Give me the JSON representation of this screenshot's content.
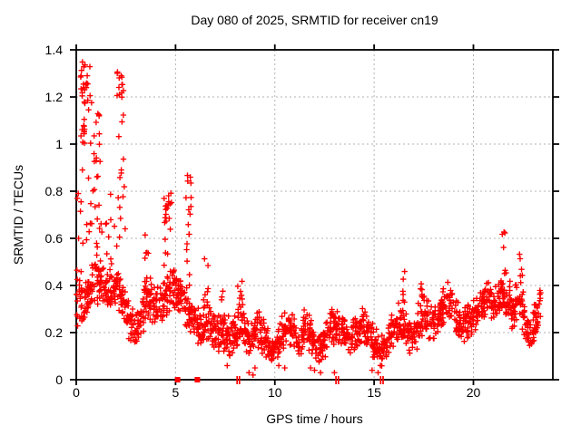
{
  "chart_data": {
    "type": "scatter",
    "title": "Day 080 of 2025, SRMTID for receiver cn19",
    "xlabel": "GPS time / hours",
    "ylabel": "SRMTID / TECUs",
    "xlim": [
      0,
      24
    ],
    "ylim": [
      0,
      1.4
    ],
    "xticks": [
      0,
      5,
      10,
      15,
      20
    ],
    "xtick_labels": [
      "0",
      "5",
      "10",
      "15",
      "20"
    ],
    "yticks": [
      0,
      0.2,
      0.4,
      0.6,
      0.8,
      1.0,
      1.2,
      1.4
    ],
    "ytick_labels": [
      "0",
      "0.2",
      "0.4",
      "0.6",
      "0.8",
      "1",
      "1.2",
      "1.4"
    ],
    "grid": true,
    "legend": "none",
    "marker": "plus",
    "marker_size_px": 7,
    "marker_color": "#ff0000",
    "grid_color": "#b3b3b3",
    "border_color": "#000000",
    "text_color": "#000000",
    "background_color": "#ffffff",
    "seed": 20250080,
    "band_envelope": {
      "comment": "main low-lying noisy band; control points [t_hours, y_min, y_max] read from pixels",
      "points_per_hour": 72,
      "t_ylo_yhi": [
        [
          0.0,
          0.13,
          0.5
        ],
        [
          0.3,
          0.22,
          0.48
        ],
        [
          0.6,
          0.25,
          0.5
        ],
        [
          0.9,
          0.28,
          0.55
        ],
        [
          1.2,
          0.3,
          0.55
        ],
        [
          1.5,
          0.26,
          0.48
        ],
        [
          1.8,
          0.28,
          0.5
        ],
        [
          2.1,
          0.28,
          0.52
        ],
        [
          2.4,
          0.22,
          0.42
        ],
        [
          2.7,
          0.16,
          0.33
        ],
        [
          3.0,
          0.1,
          0.3
        ],
        [
          3.3,
          0.18,
          0.38
        ],
        [
          3.6,
          0.25,
          0.5
        ],
        [
          3.9,
          0.22,
          0.42
        ],
        [
          4.2,
          0.2,
          0.42
        ],
        [
          4.5,
          0.25,
          0.5
        ],
        [
          4.8,
          0.28,
          0.52
        ],
        [
          5.1,
          0.3,
          0.45
        ],
        [
          5.4,
          0.2,
          0.4
        ],
        [
          5.7,
          0.18,
          0.38
        ],
        [
          6.0,
          0.15,
          0.33
        ],
        [
          6.3,
          0.12,
          0.3
        ],
        [
          6.6,
          0.15,
          0.35
        ],
        [
          6.9,
          0.12,
          0.3
        ],
        [
          7.2,
          0.1,
          0.28
        ],
        [
          7.5,
          0.12,
          0.3
        ],
        [
          7.8,
          0.08,
          0.26
        ],
        [
          8.1,
          0.12,
          0.33
        ],
        [
          8.3,
          0.15,
          0.4
        ],
        [
          8.5,
          0.1,
          0.3
        ],
        [
          8.8,
          0.08,
          0.26
        ],
        [
          9.1,
          0.12,
          0.3
        ],
        [
          9.4,
          0.1,
          0.28
        ],
        [
          9.7,
          0.06,
          0.22
        ],
        [
          10.0,
          0.05,
          0.18
        ],
        [
          10.3,
          0.1,
          0.28
        ],
        [
          10.6,
          0.14,
          0.32
        ],
        [
          10.9,
          0.12,
          0.3
        ],
        [
          11.2,
          0.06,
          0.22
        ],
        [
          11.5,
          0.12,
          0.31
        ],
        [
          11.8,
          0.1,
          0.28
        ],
        [
          12.1,
          0.05,
          0.2
        ],
        [
          12.4,
          0.06,
          0.22
        ],
        [
          12.7,
          0.12,
          0.3
        ],
        [
          13.0,
          0.14,
          0.33
        ],
        [
          13.3,
          0.12,
          0.31
        ],
        [
          13.6,
          0.1,
          0.28
        ],
        [
          13.9,
          0.08,
          0.26
        ],
        [
          14.2,
          0.12,
          0.3
        ],
        [
          14.5,
          0.14,
          0.31
        ],
        [
          14.8,
          0.1,
          0.28
        ],
        [
          15.1,
          0.06,
          0.22
        ],
        [
          15.4,
          0.05,
          0.2
        ],
        [
          15.7,
          0.08,
          0.26
        ],
        [
          16.0,
          0.12,
          0.3
        ],
        [
          16.3,
          0.15,
          0.34
        ],
        [
          16.6,
          0.12,
          0.32
        ],
        [
          16.9,
          0.1,
          0.28
        ],
        [
          17.2,
          0.12,
          0.33
        ],
        [
          17.5,
          0.15,
          0.38
        ],
        [
          17.8,
          0.14,
          0.35
        ],
        [
          18.1,
          0.16,
          0.36
        ],
        [
          18.4,
          0.2,
          0.4
        ],
        [
          18.7,
          0.22,
          0.42
        ],
        [
          19.0,
          0.2,
          0.4
        ],
        [
          19.3,
          0.16,
          0.35
        ],
        [
          19.6,
          0.14,
          0.32
        ],
        [
          19.9,
          0.17,
          0.36
        ],
        [
          20.2,
          0.2,
          0.4
        ],
        [
          20.5,
          0.24,
          0.42
        ],
        [
          20.8,
          0.25,
          0.42
        ],
        [
          21.1,
          0.24,
          0.4
        ],
        [
          21.4,
          0.26,
          0.46
        ],
        [
          21.7,
          0.24,
          0.44
        ],
        [
          22.0,
          0.2,
          0.4
        ],
        [
          22.3,
          0.24,
          0.48
        ],
        [
          22.6,
          0.14,
          0.36
        ],
        [
          22.9,
          0.08,
          0.28
        ],
        [
          23.1,
          0.15,
          0.35
        ],
        [
          23.4,
          0.22,
          0.4
        ]
      ]
    },
    "spike_clusters": {
      "comment": "dense vertical columns above the band; [t_center, t_halfwidth, y_min, y_max, n_points]",
      "t_dt_ylo_yhi_n": [
        [
          0.45,
          0.25,
          1.2,
          1.35,
          18
        ],
        [
          0.45,
          0.25,
          0.9,
          1.22,
          16
        ],
        [
          0.5,
          0.3,
          0.55,
          0.92,
          10
        ],
        [
          0.95,
          0.25,
          0.9,
          1.18,
          14
        ],
        [
          1.0,
          0.25,
          0.5,
          0.9,
          10
        ],
        [
          1.3,
          0.25,
          0.45,
          0.7,
          8
        ],
        [
          1.7,
          0.35,
          0.45,
          0.8,
          7
        ],
        [
          2.2,
          0.18,
          1.18,
          1.33,
          13
        ],
        [
          2.28,
          0.15,
          0.85,
          1.18,
          7
        ],
        [
          2.3,
          0.2,
          0.45,
          0.85,
          7
        ],
        [
          3.55,
          0.15,
          0.35,
          0.63,
          9
        ],
        [
          4.6,
          0.2,
          0.7,
          0.8,
          12
        ],
        [
          4.6,
          0.2,
          0.45,
          0.7,
          9
        ],
        [
          5.15,
          0.12,
          0.35,
          0.42,
          10
        ],
        [
          5.65,
          0.15,
          0.7,
          0.87,
          9
        ],
        [
          5.65,
          0.15,
          0.38,
          0.7,
          9
        ],
        [
          6.5,
          0.15,
          0.3,
          0.53,
          8
        ],
        [
          7.3,
          0.1,
          0.25,
          0.38,
          5
        ],
        [
          8.25,
          0.12,
          0.25,
          0.44,
          9
        ],
        [
          16.5,
          0.1,
          0.28,
          0.46,
          6
        ],
        [
          17.4,
          0.08,
          0.33,
          0.48,
          5
        ],
        [
          21.55,
          0.1,
          0.45,
          0.63,
          7
        ],
        [
          22.4,
          0.08,
          0.4,
          0.57,
          6
        ]
      ]
    },
    "outlier_points": [
      [
        0.05,
        0.77
      ],
      [
        0.1,
        0.79
      ],
      [
        0.12,
        0.6
      ],
      [
        7.6,
        0.06
      ],
      [
        8.7,
        0.03
      ],
      [
        8.9,
        0.02
      ],
      [
        9.0,
        0.05
      ],
      [
        10.2,
        0.06
      ],
      [
        10.5,
        0.05
      ],
      [
        11.8,
        0.05
      ],
      [
        12.0,
        0.04
      ],
      [
        12.3,
        0.03
      ],
      [
        13.0,
        0.03
      ],
      [
        14.9,
        0.04
      ],
      [
        15.2,
        0.03
      ]
    ],
    "axis_marks": {
      "comment": "red marks drawn on the y=0 axis line",
      "filled_squares_t": [
        5.1,
        6.1
      ],
      "double_bars_t": [
        8.1,
        8.22,
        13.08,
        13.2,
        15.33,
        15.45
      ]
    }
  }
}
